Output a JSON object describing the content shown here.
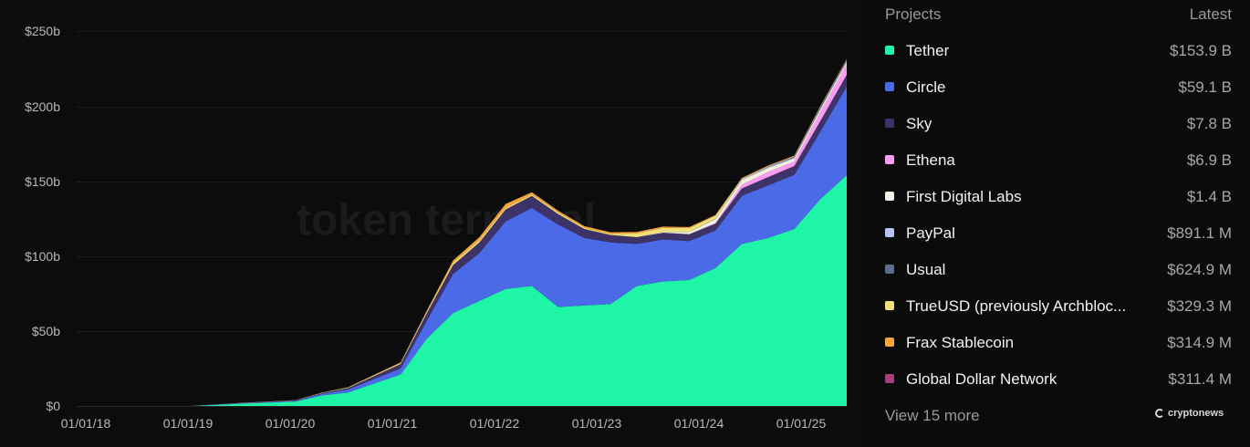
{
  "chart_data": {
    "type": "area",
    "stacked": true,
    "title": "",
    "xlabel": "",
    "ylabel": "",
    "y_ticks": [
      "$0",
      "$50b",
      "$100b",
      "$150b",
      "$200b",
      "$250b"
    ],
    "ylim": [
      0,
      250
    ],
    "x_ticks": [
      "01/01/18",
      "01/01/19",
      "01/01/20",
      "01/01/21",
      "01/01/22",
      "01/01/23",
      "01/01/24",
      "01/01/25"
    ],
    "grid": true,
    "legend_position": "right",
    "x": [
      "2018-01",
      "2018-07",
      "2019-01",
      "2019-07",
      "2020-01",
      "2020-04",
      "2020-07",
      "2020-10",
      "2021-01",
      "2021-04",
      "2021-07",
      "2021-10",
      "2022-01",
      "2022-04",
      "2022-07",
      "2022-10",
      "2023-01",
      "2023-04",
      "2023-07",
      "2023-10",
      "2024-01",
      "2024-04",
      "2024-07",
      "2024-10",
      "2025-01",
      "2025-04"
    ],
    "series": [
      {
        "name": "Tether",
        "color": "#1ef5a6",
        "values": [
          0,
          0,
          0,
          1.5,
          3,
          7,
          9,
          15,
          21,
          45,
          62,
          70,
          78,
          80,
          66,
          67,
          68,
          80,
          83,
          84,
          92,
          108,
          112,
          118,
          138,
          153.9
        ]
      },
      {
        "name": "Circle",
        "color": "#4a6ae8",
        "values": [
          0,
          0,
          0,
          0.5,
          0.5,
          1,
          2,
          3,
          4,
          12,
          26,
          32,
          45,
          52,
          55,
          45,
          41,
          28,
          28,
          26,
          25,
          32,
          35,
          36,
          45,
          59.1
        ]
      },
      {
        "name": "Sky",
        "color": "#3e3368",
        "values": [
          0,
          0,
          0,
          0,
          0.2,
          0.5,
          1,
          2,
          3,
          5,
          6,
          7,
          8,
          8,
          7,
          6,
          5,
          4.5,
          4.5,
          4.5,
          4.5,
          5,
          5.5,
          6,
          7,
          7.8
        ]
      },
      {
        "name": "Ethena",
        "color": "#f99cf2",
        "values": [
          0,
          0,
          0,
          0,
          0,
          0,
          0,
          0,
          0,
          0,
          0,
          0,
          0,
          0,
          0,
          0,
          0,
          0,
          0,
          0,
          0.5,
          2.5,
          3.5,
          3,
          6,
          6.9
        ]
      },
      {
        "name": "First Digital Labs",
        "color": "#f3f1e4",
        "values": [
          0,
          0,
          0,
          0,
          0,
          0,
          0,
          0,
          0,
          0,
          0,
          0,
          0,
          0,
          0,
          0,
          0,
          0,
          0.5,
          1.5,
          2.5,
          3,
          2.5,
          2,
          1.8,
          1.4
        ]
      },
      {
        "name": "PayPal",
        "color": "#b5c4f5",
        "values": [
          0,
          0,
          0,
          0,
          0,
          0,
          0,
          0,
          0,
          0,
          0,
          0,
          0,
          0,
          0,
          0,
          0,
          0,
          0,
          0.1,
          0.3,
          0.5,
          0.8,
          0.6,
          0.5,
          0.9
        ]
      },
      {
        "name": "Usual",
        "color": "#5c6d8d",
        "values": [
          0,
          0,
          0,
          0,
          0,
          0,
          0,
          0,
          0,
          0,
          0,
          0,
          0,
          0,
          0,
          0,
          0,
          0,
          0,
          0,
          0,
          0,
          0.2,
          0.5,
          1.0,
          0.6
        ]
      },
      {
        "name": "TrueUSD (previously Archblock)",
        "color": "#f1e07a",
        "values": [
          0,
          0,
          0,
          0.1,
          0.2,
          0.3,
          0.4,
          0.6,
          0.8,
          1.2,
          1.5,
          1.5,
          1.2,
          1.0,
          1.0,
          0.9,
          0.8,
          2.5,
          2.8,
          2.5,
          2.0,
          0.5,
          0.4,
          0.4,
          0.4,
          0.3
        ]
      },
      {
        "name": "Frax Stablecoin",
        "color": "#f5a43c",
        "values": [
          0,
          0,
          0,
          0,
          0,
          0,
          0.1,
          0.2,
          0.3,
          0.5,
          1.5,
          2.0,
          2.5,
          1.5,
          1.2,
          1.0,
          1.0,
          1.0,
          0.8,
          0.7,
          0.6,
          0.5,
          0.4,
          0.4,
          0.3,
          0.3
        ]
      },
      {
        "name": "Global Dollar Network",
        "color": "#a7407c",
        "values": [
          0,
          0,
          0,
          0,
          0,
          0,
          0,
          0,
          0,
          0,
          0,
          0,
          0,
          0,
          0,
          0,
          0,
          0,
          0,
          0,
          0,
          0,
          0,
          0.1,
          0.3,
          0.3
        ]
      }
    ],
    "watermark": "token terminal"
  },
  "axis": {
    "y": [
      "$250b",
      "$200b",
      "$150b",
      "$100b",
      "$50b",
      "$0"
    ],
    "x": [
      "01/01/18",
      "01/01/19",
      "01/01/20",
      "01/01/21",
      "01/01/22",
      "01/01/23",
      "01/01/24",
      "01/01/25"
    ]
  },
  "watermark": "token terminal",
  "legend": {
    "header_left": "Projects",
    "header_right": "Latest",
    "items": [
      {
        "name": "Tether",
        "value": "$153.9 B",
        "color": "#1ef5a6"
      },
      {
        "name": "Circle",
        "value": "$59.1 B",
        "color": "#4a6ae8"
      },
      {
        "name": "Sky",
        "value": "$7.8 B",
        "color": "#3e3368"
      },
      {
        "name": "Ethena",
        "value": "$6.9 B",
        "color": "#f99cf2"
      },
      {
        "name": "First Digital Labs",
        "value": "$1.4 B",
        "color": "#f3f1e4"
      },
      {
        "name": "PayPal",
        "value": "$891.1 M",
        "color": "#b5c4f5"
      },
      {
        "name": "Usual",
        "value": "$624.9 M",
        "color": "#5c6d8d"
      },
      {
        "name": "TrueUSD (previously Archbloc...",
        "value": "$329.3 M",
        "color": "#f1e07a"
      },
      {
        "name": "Frax Stablecoin",
        "value": "$314.9 M",
        "color": "#f5a43c"
      },
      {
        "name": "Global Dollar Network",
        "value": "$311.4 M",
        "color": "#a7407c"
      }
    ],
    "view_more": "View 15 more"
  },
  "brand": "cryptonews"
}
